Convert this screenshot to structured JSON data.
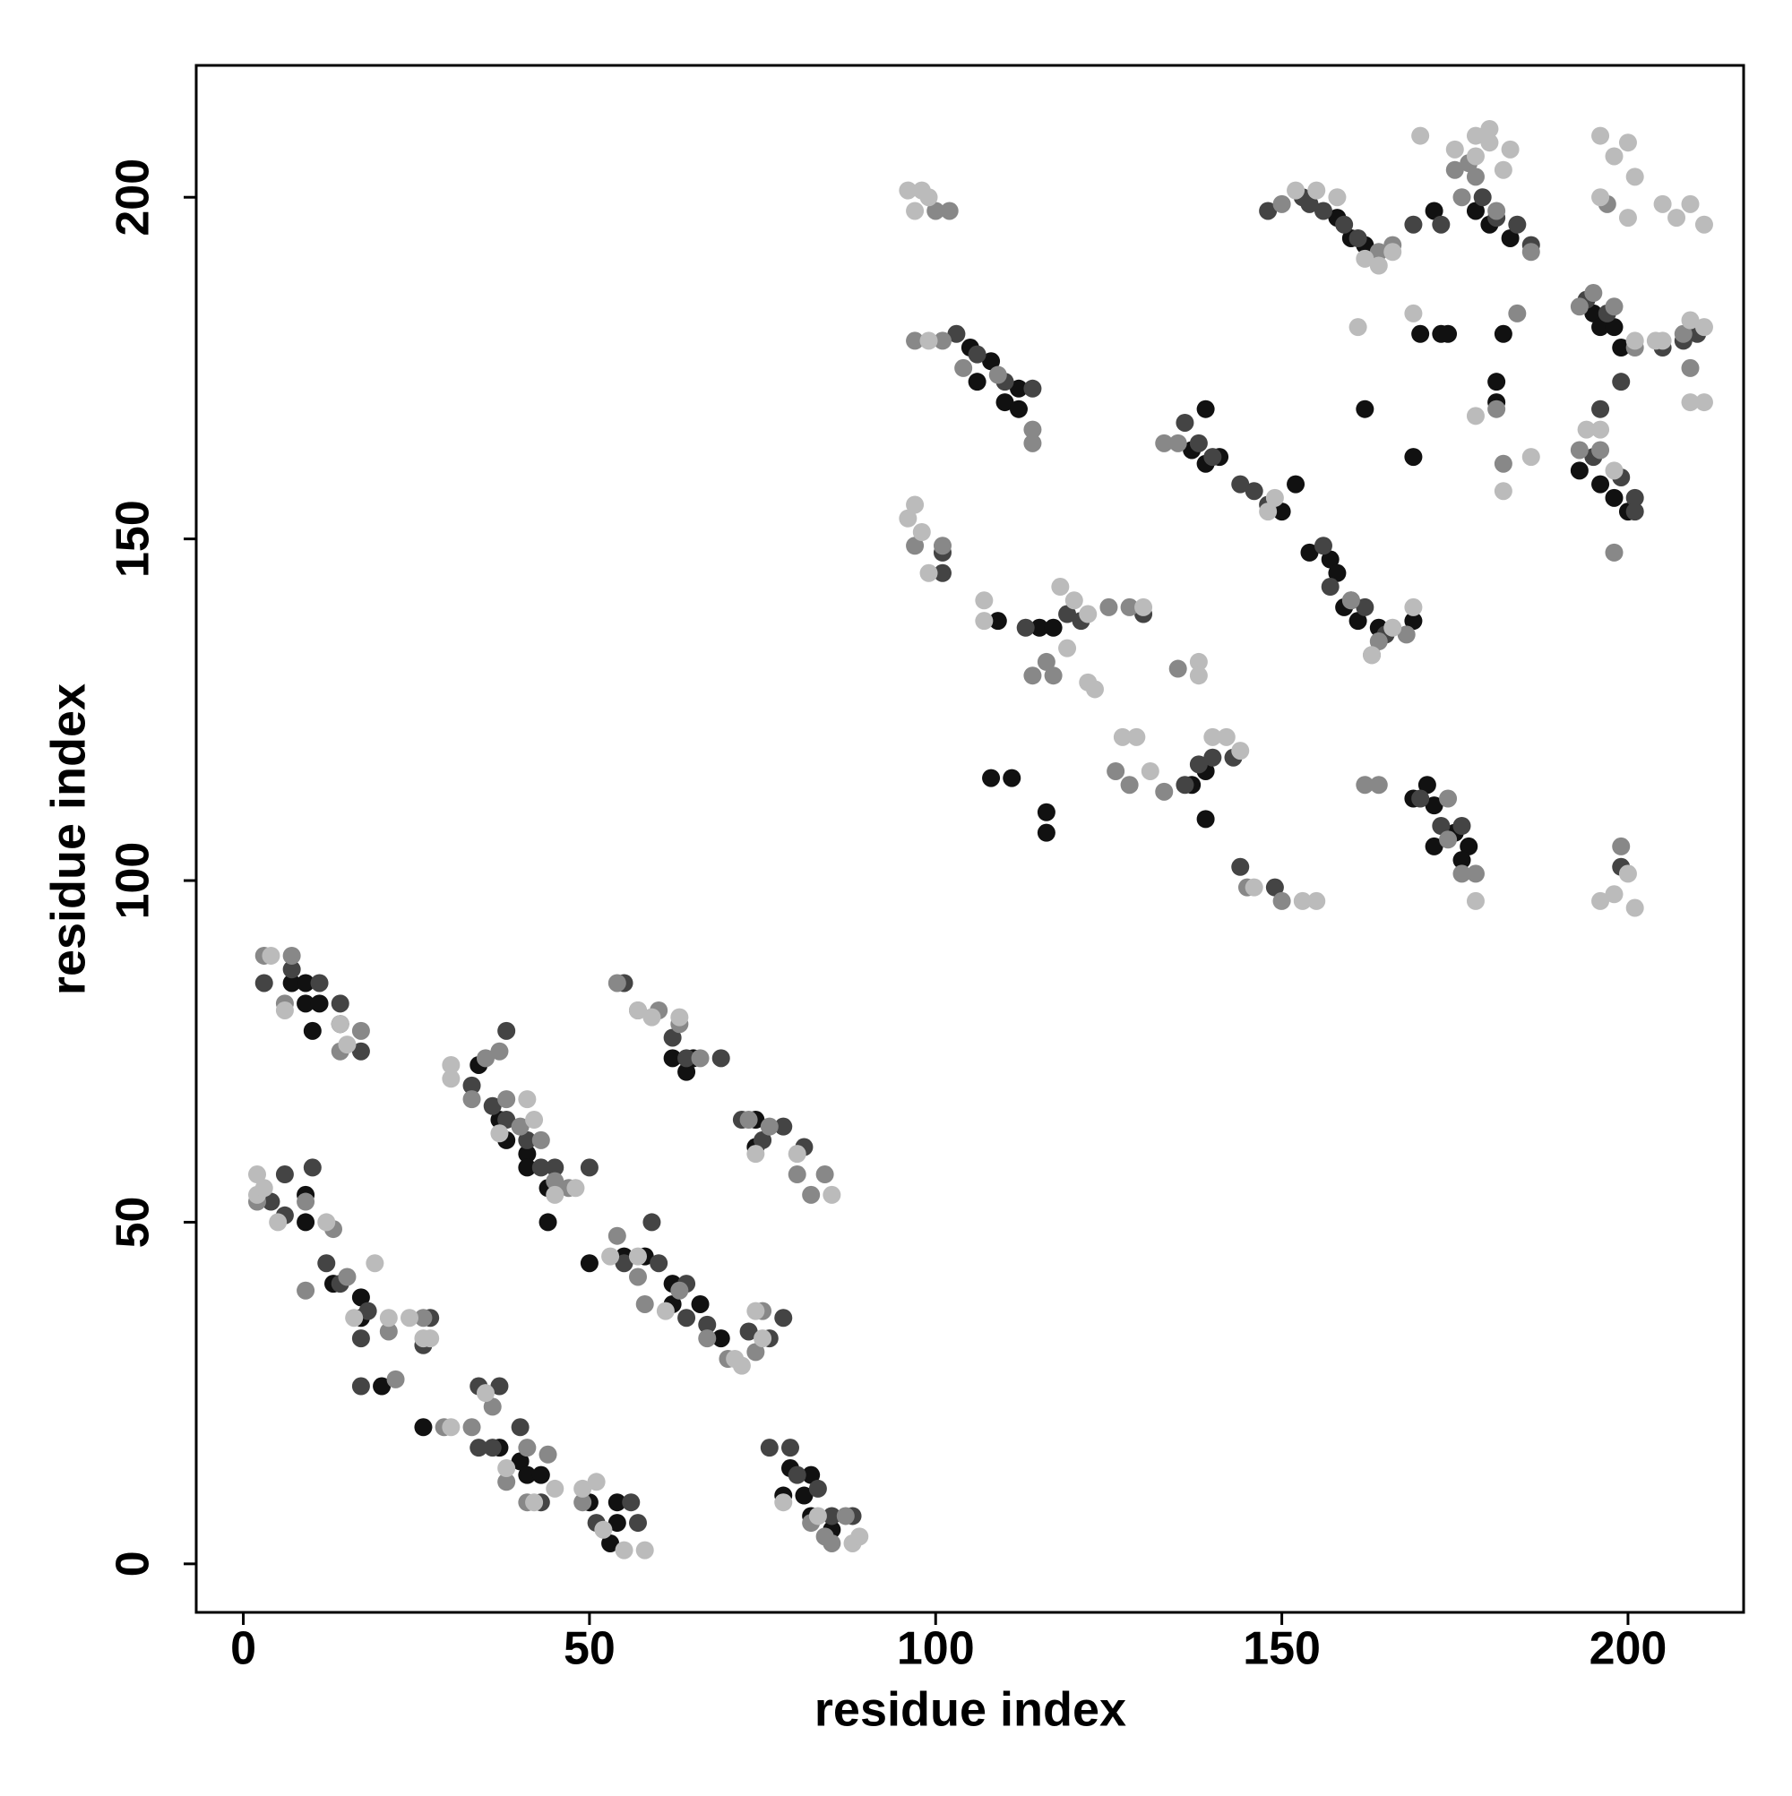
{
  "chart_data": {
    "type": "scatter",
    "xlabel": "residue index",
    "ylabel": "residue index",
    "xlim": [
      -6.8,
      216.7
    ],
    "ylim": [
      -7.1,
      219.3
    ],
    "xticks": [
      0,
      50,
      100,
      150,
      200
    ],
    "yticks": [
      0,
      50,
      100,
      150,
      200
    ],
    "grid": false,
    "series": [
      {
        "color": "#111111",
        "x": [
          9,
          10,
          11,
          7,
          14,
          9,
          34,
          37,
          38,
          41,
          41,
          44,
          44,
          62,
          64,
          65,
          74,
          74,
          9,
          9,
          13,
          17,
          17,
          20,
          50,
          55,
          58,
          62,
          62,
          66,
          69,
          26,
          37,
          40,
          41,
          43,
          50,
          54,
          54,
          53,
          79,
          82,
          78,
          81,
          82,
          85,
          105,
          106,
          108,
          110,
          112,
          112,
          108,
          111,
          116,
          116,
          115,
          117,
          139,
          137,
          139,
          141,
          152,
          150,
          109,
          139,
          137,
          139,
          154,
          157,
          158,
          159,
          161,
          164,
          169,
          169,
          171,
          172,
          172,
          175,
          177,
          176,
          162,
          169,
          170,
          173,
          174,
          178,
          180,
          183,
          158,
          160,
          162,
          181,
          181,
          182,
          195,
          196,
          198,
          199,
          196,
          198,
          200,
          172,
          193
        ],
        "y": [
          82,
          78,
          82,
          85,
          79,
          85,
          73,
          65,
          62,
          60,
          58,
          55,
          50,
          74,
          72,
          74,
          65,
          61,
          54,
          50,
          41,
          39,
          36,
          26,
          44,
          45,
          45,
          41,
          38,
          38,
          33,
          20,
          17,
          15,
          13,
          13,
          9,
          9,
          6,
          3,
          14,
          13,
          10,
          10,
          7,
          5,
          178,
          173,
          176,
          170,
          172,
          169,
          115,
          115,
          107,
          110,
          137,
          137,
          169,
          163,
          161,
          162,
          158,
          154,
          138,
          109,
          114,
          116,
          148,
          147,
          145,
          140,
          138,
          137,
          138,
          112,
          114,
          111,
          105,
          107,
          105,
          103,
          169,
          162,
          180,
          180,
          180,
          198,
          196,
          194,
          197,
          194,
          193,
          170,
          173,
          180,
          183,
          181,
          181,
          178,
          158,
          156,
          154,
          198,
          160
        ]
      },
      {
        "color": "#444444",
        "x": [
          3,
          7,
          11,
          14,
          17,
          33,
          36,
          38,
          41,
          43,
          45,
          38,
          55,
          62,
          64,
          69,
          72,
          75,
          78,
          81,
          4,
          6,
          10,
          6,
          12,
          14,
          18,
          17,
          17,
          26,
          34,
          37,
          34,
          36,
          40,
          43,
          27,
          55,
          59,
          60,
          64,
          64,
          67,
          73,
          76,
          78,
          50,
          76,
          79,
          80,
          83,
          85,
          88,
          51,
          56,
          57,
          101,
          101,
          103,
          106,
          110,
          114,
          136,
          138,
          140,
          144,
          146,
          148,
          113,
          119,
          121,
          130,
          136,
          138,
          140,
          143,
          144,
          149,
          153,
          154,
          156,
          159,
          161,
          156,
          157,
          160,
          162,
          165,
          170,
          173,
          176,
          179,
          181,
          184,
          186,
          173,
          169,
          194,
          197,
          199,
          196,
          205,
          208,
          210,
          195,
          199,
          201,
          201,
          148,
          199
        ],
        "y": [
          85,
          87,
          85,
          82,
          75,
          70,
          67,
          65,
          62,
          58,
          58,
          78,
          85,
          77,
          74,
          74,
          65,
          62,
          64,
          61,
          53,
          57,
          58,
          51,
          44,
          41,
          37,
          33,
          26,
          32,
          26,
          26,
          17,
          17,
          20,
          9,
          36,
          44,
          50,
          44,
          41,
          36,
          35,
          34,
          33,
          36,
          58,
          17,
          17,
          13,
          11,
          7,
          7,
          6,
          9,
          6,
          148,
          145,
          180,
          177,
          173,
          172,
          167,
          164,
          162,
          158,
          157,
          155,
          137,
          139,
          138,
          139,
          114,
          117,
          118,
          118,
          102,
          99,
          200,
          199,
          198,
          196,
          194,
          149,
          143,
          141,
          140,
          136,
          112,
          108,
          108,
          200,
          197,
          196,
          193,
          196,
          196,
          185,
          183,
          173,
          169,
          178,
          179,
          180,
          162,
          159,
          156,
          154,
          198,
          102
        ]
      },
      {
        "color": "#888888",
        "x": [
          3,
          7,
          6,
          17,
          14,
          35,
          37,
          33,
          38,
          40,
          43,
          45,
          47,
          54,
          57,
          60,
          63,
          66,
          73,
          76,
          80,
          82,
          84,
          2,
          9,
          13,
          9,
          15,
          21,
          22,
          26,
          29,
          33,
          36,
          41,
          44,
          38,
          41,
          49,
          54,
          57,
          58,
          63,
          67,
          70,
          74,
          75,
          82,
          84,
          87,
          85,
          97,
          101,
          104,
          109,
          114,
          114,
          100,
          102,
          97,
          101,
          116,
          117,
          114,
          128,
          125,
          126,
          128,
          135,
          133,
          145,
          150,
          135,
          133,
          160,
          163,
          164,
          168,
          162,
          164,
          174,
          174,
          176,
          178,
          150,
          166,
          164,
          181,
          176,
          175,
          177,
          184,
          186,
          193,
          195,
          198,
          201,
          209,
          208,
          199,
          198,
          181,
          182,
          178,
          193,
          196,
          197
        ],
        "y": [
          89,
          89,
          82,
          78,
          75,
          74,
          75,
          68,
          68,
          64,
          62,
          56,
          55,
          85,
          81,
          81,
          79,
          74,
          65,
          64,
          57,
          54,
          57,
          53,
          53,
          49,
          40,
          42,
          34,
          27,
          36,
          20,
          20,
          23,
          17,
          16,
          12,
          9,
          9,
          48,
          42,
          38,
          40,
          33,
          30,
          31,
          37,
          6,
          4,
          7,
          3,
          179,
          179,
          175,
          174,
          166,
          164,
          198,
          198,
          149,
          149,
          132,
          130,
          130,
          140,
          140,
          116,
          114,
          131,
          113,
          99,
          97,
          164,
          164,
          141,
          133,
          135,
          136,
          114,
          114,
          112,
          106,
          101,
          101,
          199,
          193,
          192,
          198,
          200,
          204,
          205,
          183,
          192,
          184,
          186,
          184,
          178,
          175,
          180,
          105,
          148,
          169,
          161,
          203,
          163,
          163,
          199
        ]
      },
      {
        "color": "#bbbbbb",
        "x": [
          2,
          2,
          4,
          6,
          14,
          15,
          30,
          30,
          37,
          41,
          42,
          45,
          48,
          57,
          59,
          63,
          74,
          80,
          85,
          3,
          5,
          12,
          16,
          19,
          21,
          24,
          26,
          27,
          30,
          35,
          38,
          42,
          45,
          51,
          49,
          52,
          55,
          58,
          53,
          57,
          61,
          71,
          72,
          74,
          75,
          78,
          83,
          88,
          89,
          96,
          97,
          98,
          99,
          96,
          98,
          99,
          97,
          99,
          107,
          107,
          118,
          120,
          122,
          122,
          123,
          119,
          127,
          129,
          131,
          130,
          138,
          138,
          140,
          142,
          144,
          146,
          153,
          155,
          149,
          148,
          152,
          155,
          158,
          162,
          164,
          166,
          169,
          166,
          163,
          169,
          170,
          175,
          178,
          180,
          180,
          182,
          183,
          178,
          196,
          198,
          200,
          201,
          205,
          207,
          209,
          211,
          209,
          211,
          211,
          209,
          201,
          205,
          204,
          198,
          200,
          201,
          196,
          178,
          161,
          182,
          186,
          178,
          196,
          200,
          194,
          196,
          198
        ],
        "y": [
          57,
          54,
          89,
          81,
          79,
          76,
          71,
          73,
          63,
          68,
          65,
          54,
          55,
          81,
          80,
          80,
          60,
          60,
          54,
          55,
          50,
          50,
          36,
          44,
          36,
          36,
          33,
          33,
          20,
          25,
          14,
          9,
          11,
          12,
          11,
          5,
          2,
          2,
          45,
          45,
          37,
          30,
          29,
          37,
          33,
          9,
          7,
          3,
          4,
          153,
          155,
          151,
          145,
          201,
          201,
          200,
          198,
          179,
          141,
          138,
          143,
          141,
          139,
          129,
          128,
          134,
          121,
          121,
          116,
          140,
          132,
          130,
          121,
          121,
          119,
          99,
          97,
          97,
          156,
          154,
          201,
          201,
          200,
          191,
          190,
          192,
          140,
          137,
          133,
          183,
          209,
          207,
          209,
          210,
          208,
          204,
          207,
          206,
          209,
          206,
          208,
          203,
          199,
          197,
          199,
          196,
          182,
          181,
          170,
          170,
          179,
          179,
          179,
          98,
          101,
          96,
          97,
          97,
          181,
          157,
          162,
          168,
          200,
          197,
          166,
          166,
          160
        ]
      }
    ]
  }
}
